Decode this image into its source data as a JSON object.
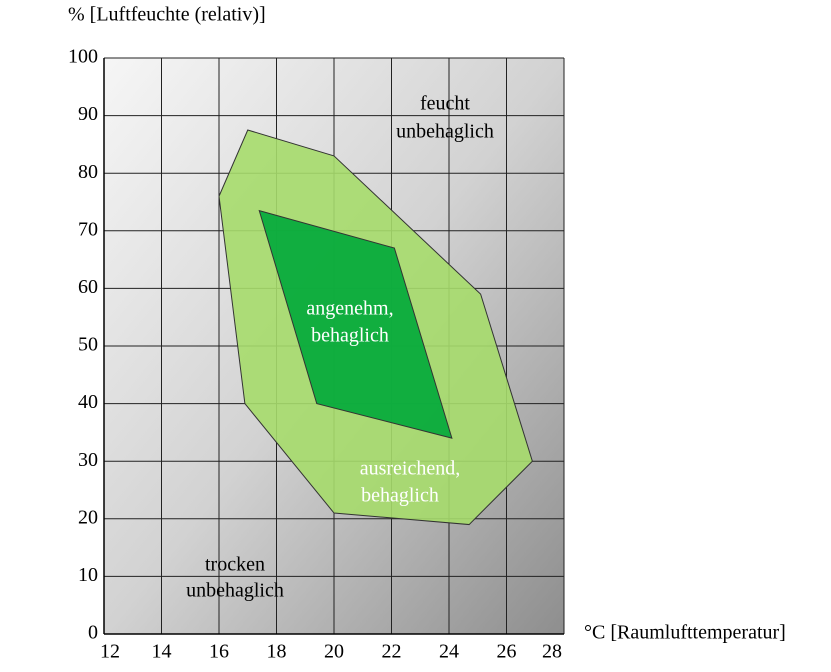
{
  "chart_data": {
    "type": "polygon",
    "ylabel": "% [Luftfeuchte (relativ)]",
    "xlabel": "°C [Raumlufttemperatur]",
    "xlim": [
      12,
      28
    ],
    "xticks": [
      12,
      14,
      16,
      18,
      20,
      22,
      24,
      26,
      28
    ],
    "ylim": [
      0,
      100
    ],
    "yticks": [
      0,
      10,
      20,
      30,
      40,
      50,
      60,
      70,
      80,
      90,
      100
    ],
    "grid": true,
    "series": [
      {
        "color": "#a6dc6c",
        "x": [
          16,
          17,
          20,
          25.1,
          26.9,
          24.7,
          20,
          16.9
        ],
        "y": [
          76,
          87.5,
          83,
          59,
          30,
          19,
          21,
          40
        ]
      },
      {
        "color": "#00a83a",
        "x": [
          17.4,
          22.1,
          24.1,
          19.4
        ],
        "y": [
          73.5,
          67,
          34,
          40
        ]
      }
    ],
    "annotations": [
      [
        "feucht",
        "unbehaglich"
      ],
      [
        "angenehm,",
        "behaglich"
      ],
      [
        "ausreichend,",
        "behaglich"
      ],
      [
        "trocken",
        "unbehaglich"
      ]
    ]
  }
}
